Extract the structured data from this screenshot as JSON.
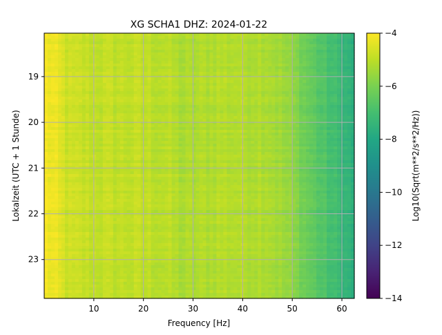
{
  "chart_data": {
    "type": "heatmap",
    "title": "XG SCHA1  DHZ: 2024-01-22",
    "xlabel": "Frequency [Hz]",
    "ylabel": "Lokalzeit (UTC + 1 Stunde)",
    "colorbar_label": "Log10(Sqrt(m**2/s**2/Hz))",
    "colormap": "viridis",
    "xlim": [
      0,
      62.5
    ],
    "ylim": [
      18.05,
      23.85
    ],
    "y_inverted": true,
    "x_ticks": [
      10,
      20,
      30,
      40,
      50,
      60
    ],
    "y_ticks": [
      19,
      20,
      21,
      22,
      23
    ],
    "colorbar_range": [
      -14,
      -4
    ],
    "colorbar_ticks": [
      -4,
      -6,
      -8,
      -10,
      -12,
      -14
    ],
    "grid": true,
    "grid_color": "#b0b0b0",
    "spectrum_profile": {
      "frequency_hz": [
        0,
        2,
        5,
        10,
        20,
        25,
        28,
        35,
        45,
        50,
        55,
        60,
        62.5
      ],
      "log10_value": [
        -4.1,
        -4.3,
        -4.8,
        -4.9,
        -4.95,
        -5.05,
        -5.3,
        -5.1,
        -5.15,
        -5.7,
        -6.6,
        -7.3,
        -7.7
      ]
    }
  }
}
